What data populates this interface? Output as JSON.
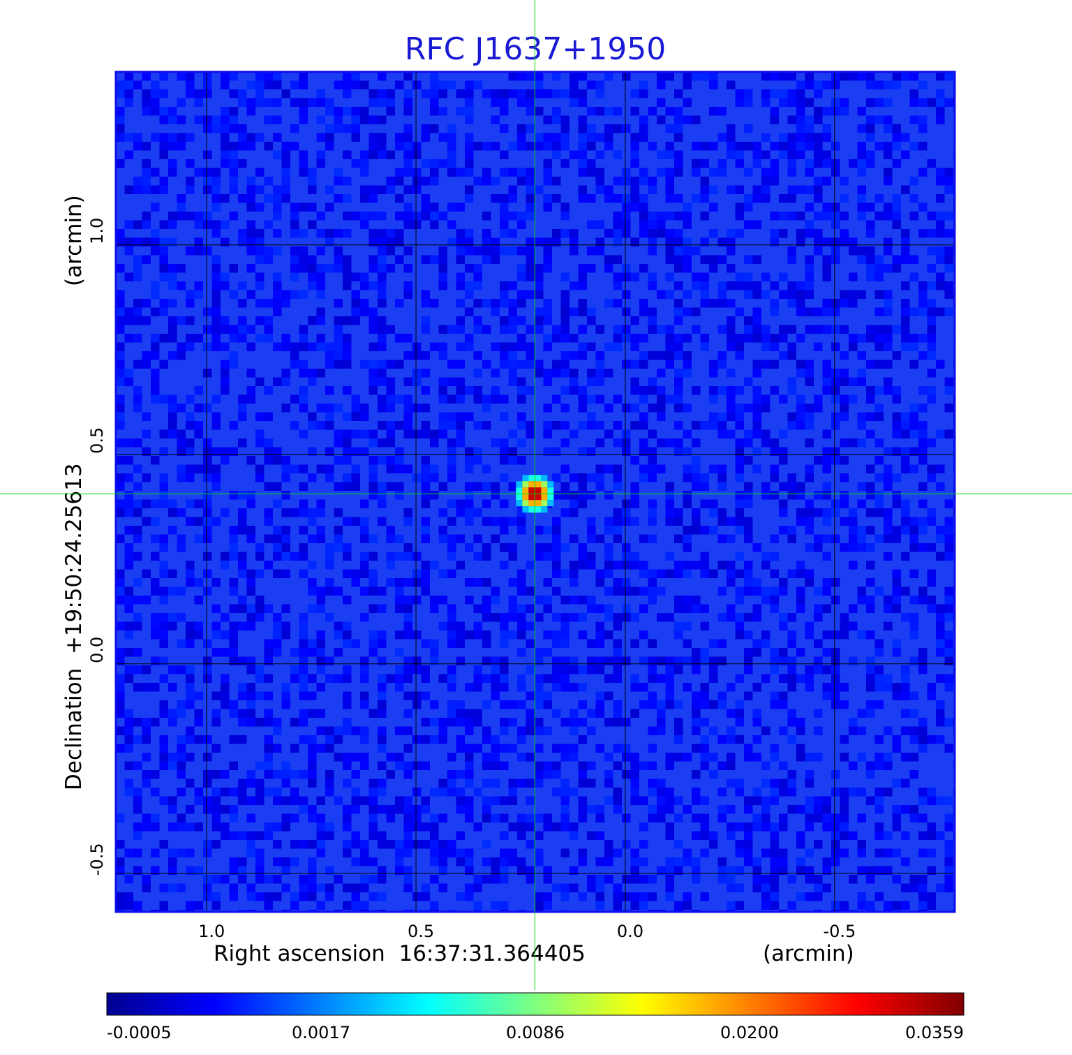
{
  "chart_data": {
    "type": "heatmap",
    "title": "RFC J1637+1950",
    "xlabel": "Right ascension  16:37:31.364405",
    "xunit": "(arcmin)",
    "ylabel": "Declination  +19:50:24.25613",
    "yunit": "(arcmin)",
    "x_ticks": [
      1.0,
      0.5,
      0.0,
      -0.5
    ],
    "x_tick_labels": [
      "1.0",
      "0.5",
      "0.0",
      "-0.5"
    ],
    "y_ticks": [
      1.0,
      0.5,
      0.0,
      -0.5
    ],
    "y_tick_labels": [
      "1.0",
      "0.5",
      "0.0",
      "-0.5"
    ],
    "xlim": [
      1.217,
      -0.787
    ],
    "ylim": [
      -0.592,
      1.413
    ],
    "grid": true,
    "crosshair": {
      "x": 0.216,
      "y": 0.406
    },
    "source_peak": {
      "x": 0.216,
      "y": 0.406,
      "value": 0.0359
    },
    "background_value": 0.0002,
    "colormap": "jet",
    "colorbar": {
      "ticks": [
        -0.0005,
        0.0017,
        0.0086,
        0.02,
        0.0359
      ],
      "tick_labels": [
        "-0.0005",
        "0.0017",
        "0.0086",
        "0.0200",
        "0.0359"
      ],
      "min": -0.0005,
      "max": 0.0359
    }
  },
  "colors": {
    "title": "#1a1ad6",
    "grid": "#000000",
    "crosshair": "#00dd00",
    "frame": "#1010ee"
  }
}
